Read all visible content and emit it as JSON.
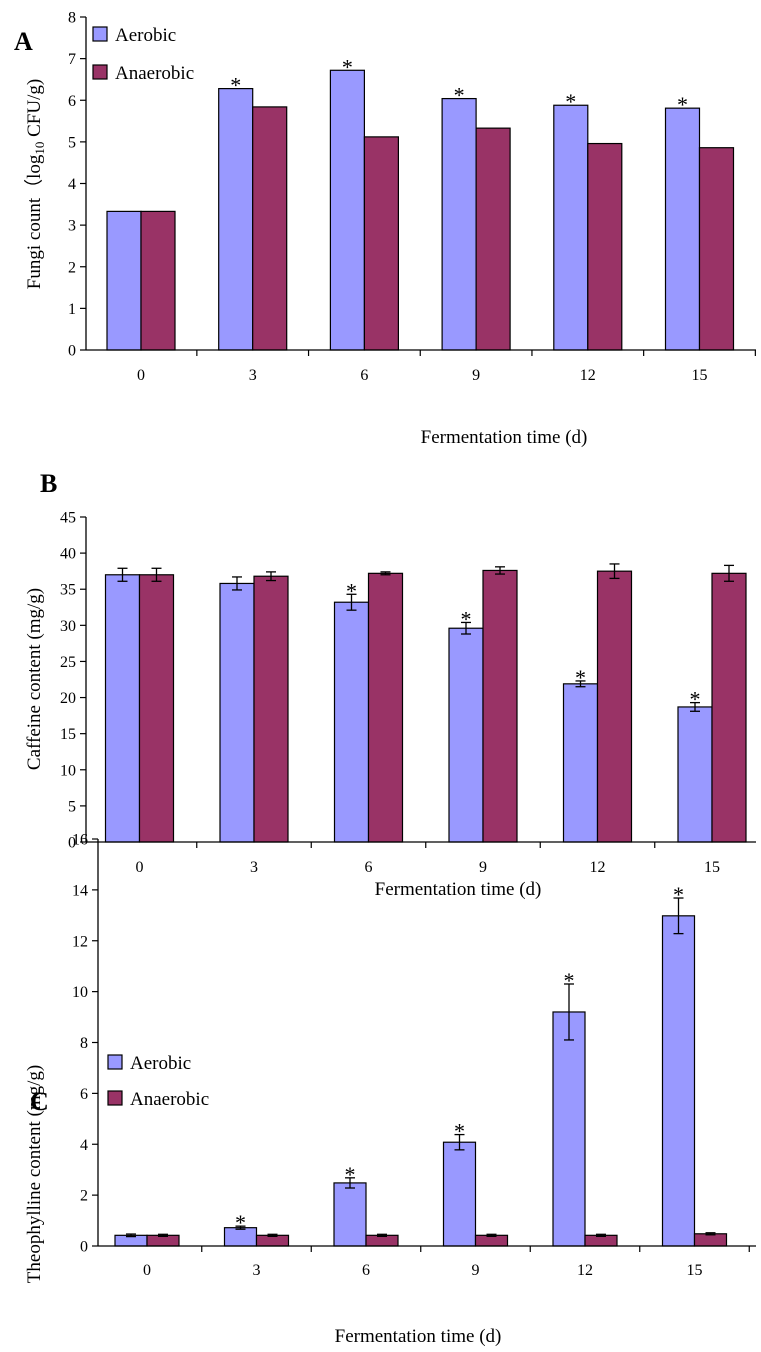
{
  "colors": {
    "aerobic": "#9999FF",
    "anaerobic": "#993366"
  },
  "chart_data": [
    {
      "panel": "A",
      "type": "bar",
      "categories": [
        "0",
        "3",
        "6",
        "9",
        "12",
        "15"
      ],
      "series": [
        {
          "name": "Aerobic",
          "values": [
            3.33,
            6.28,
            6.72,
            6.04,
            5.88,
            5.81
          ],
          "significant": [
            false,
            true,
            true,
            true,
            true,
            true
          ]
        },
        {
          "name": "Anaerobic",
          "values": [
            3.33,
            5.84,
            5.12,
            5.33,
            4.96,
            4.86
          ]
        }
      ],
      "xlabel": "Fermentation time (d)",
      "ylabel": "Fungi count (log10 CFU/g)",
      "ylabel_parts": {
        "pre": "Fungi count（log",
        "sub": "10",
        "post": " CFU/g)"
      },
      "ylim": [
        0,
        8
      ],
      "yticks": [
        "0",
        "1",
        "2",
        "3",
        "4",
        "5",
        "6",
        "7",
        "8"
      ],
      "legend": "top-left",
      "marker": "*"
    },
    {
      "panel": "B",
      "type": "bar",
      "categories": [
        "0",
        "3",
        "6",
        "9",
        "12",
        "15"
      ],
      "series": [
        {
          "name": "Aerobic",
          "values": [
            37.0,
            35.8,
            33.2,
            29.6,
            21.9,
            18.7
          ],
          "errors": [
            0.9,
            0.9,
            1.1,
            0.8,
            0.4,
            0.6
          ],
          "significant": [
            false,
            false,
            true,
            true,
            true,
            true
          ]
        },
        {
          "name": "Anaerobic",
          "values": [
            37.0,
            36.8,
            37.2,
            37.6,
            37.5,
            37.2
          ],
          "errors": [
            0.9,
            0.6,
            0.2,
            0.5,
            1.0,
            1.1
          ]
        }
      ],
      "xlabel": "Fermentation time (d)",
      "ylabel": "Caffeine content (mg/g)",
      "ylim": [
        0,
        45
      ],
      "yticks": [
        "0",
        "5",
        "10",
        "15",
        "20",
        "25",
        "30",
        "35",
        "40",
        "45"
      ],
      "legend": "none",
      "marker": "*"
    },
    {
      "panel": "C",
      "type": "bar",
      "categories": [
        "0",
        "3",
        "6",
        "9",
        "12",
        "15"
      ],
      "series": [
        {
          "name": "Aerobic",
          "values": [
            0.42,
            0.72,
            2.48,
            4.08,
            9.2,
            12.98
          ],
          "errors": [
            0.05,
            0.06,
            0.2,
            0.3,
            1.1,
            0.7
          ],
          "significant": [
            false,
            true,
            true,
            true,
            true,
            true
          ]
        },
        {
          "name": "Anaerobic",
          "values": [
            0.42,
            0.42,
            0.42,
            0.42,
            0.42,
            0.48
          ],
          "errors": [
            0.04,
            0.04,
            0.04,
            0.04,
            0.04,
            0.04
          ]
        }
      ],
      "xlabel": "Fermentation time (d)",
      "ylabel": "Theophylline content (mg/g)",
      "ylim": [
        0,
        16
      ],
      "yticks": [
        "0",
        "2",
        "4",
        "6",
        "8",
        "10",
        "12",
        "14",
        "16"
      ],
      "legend": "top-left",
      "marker": "*"
    }
  ]
}
